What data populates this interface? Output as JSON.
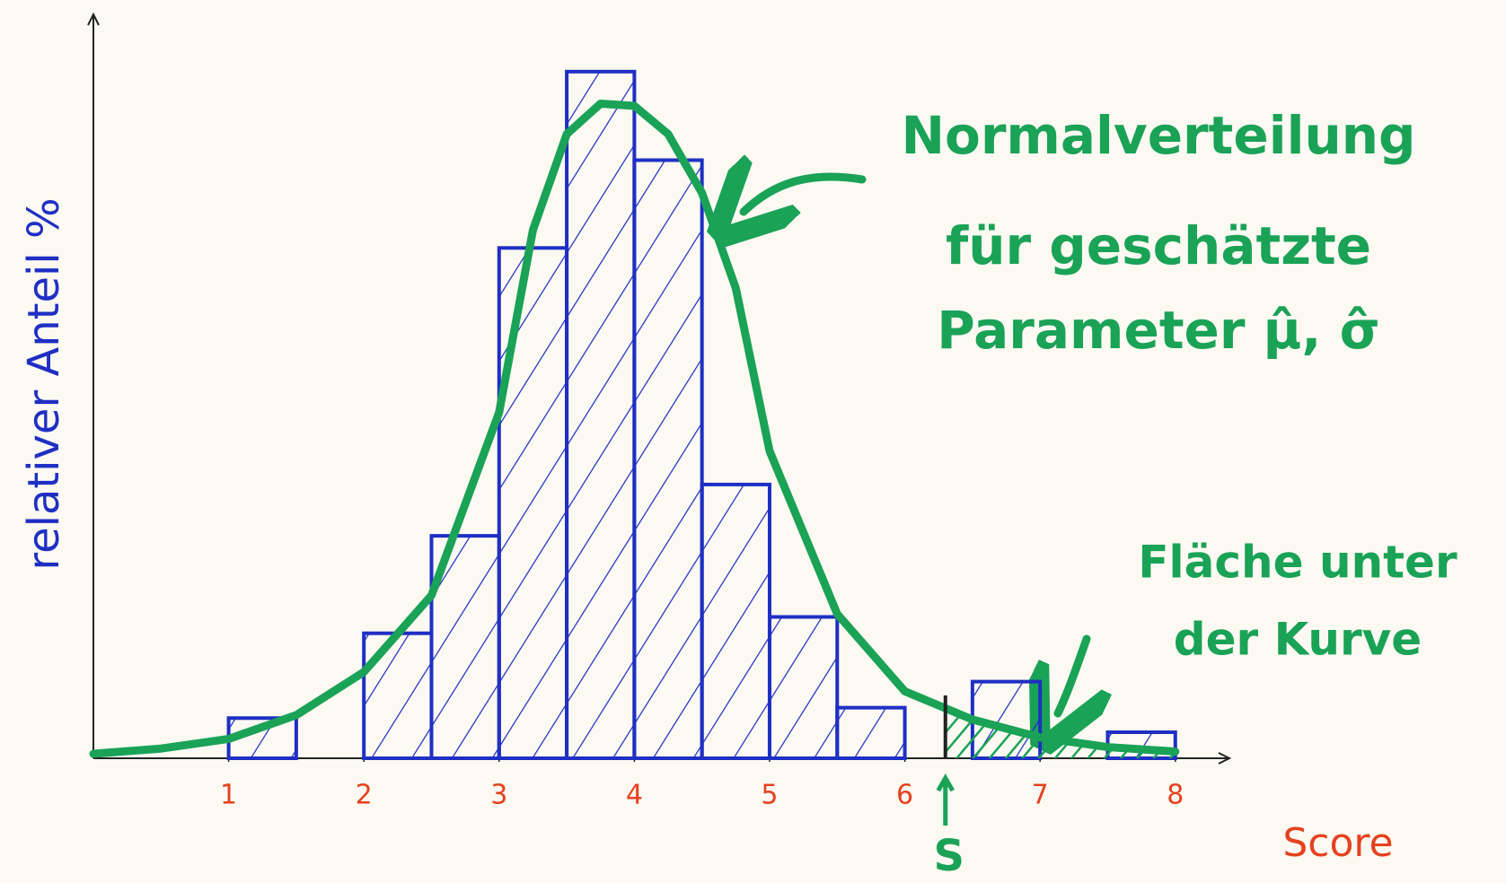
{
  "chart_data": {
    "type": "histogram",
    "ylabel": "relativer Anteil %",
    "xlabel": "Score",
    "bins": [
      1,
      1.5,
      2,
      2.5,
      3,
      3.5,
      4,
      4.5,
      5,
      5.5,
      6,
      6.5,
      7,
      7.5,
      8
    ],
    "counts": [
      5.4,
      0,
      16.8,
      29.9,
      68.6,
      92.3,
      80.4,
      36.8,
      19.0,
      6.8,
      0,
      10.3,
      0,
      3.5
    ],
    "color": "#1f2fc4",
    "curve": {
      "color": "#1aa257",
      "x": [
        0,
        0.5,
        1,
        1.5,
        2,
        2.5,
        3,
        3.25,
        3.5,
        3.75,
        4,
        4.25,
        4.5,
        4.75,
        5,
        5.5,
        6,
        6.5,
        7,
        7.5,
        8
      ],
      "values": [
        0.6,
        1.3,
        2.6,
        5.8,
        11.6,
        21.9,
        46.5,
        71,
        83.9,
        88,
        87.7,
        83.9,
        76,
        63.2,
        41.3,
        19.4,
        9,
        5.2,
        2.8,
        1.5,
        0.9
      ]
    },
    "xlim": [
      0,
      8.4
    ],
    "ylim": [
      0,
      100
    ],
    "xticks": [
      1,
      2,
      3,
      4,
      5,
      6,
      7,
      8
    ],
    "tick_color": "#e5411e",
    "threshold": {
      "label": "S",
      "x": 6.3
    },
    "curve_label": [
      "Normalverteilung",
      "für geschätzte",
      "Parameter μ̂, σ̂"
    ],
    "area_label": [
      "Fläche unter",
      "der Kurve"
    ]
  }
}
